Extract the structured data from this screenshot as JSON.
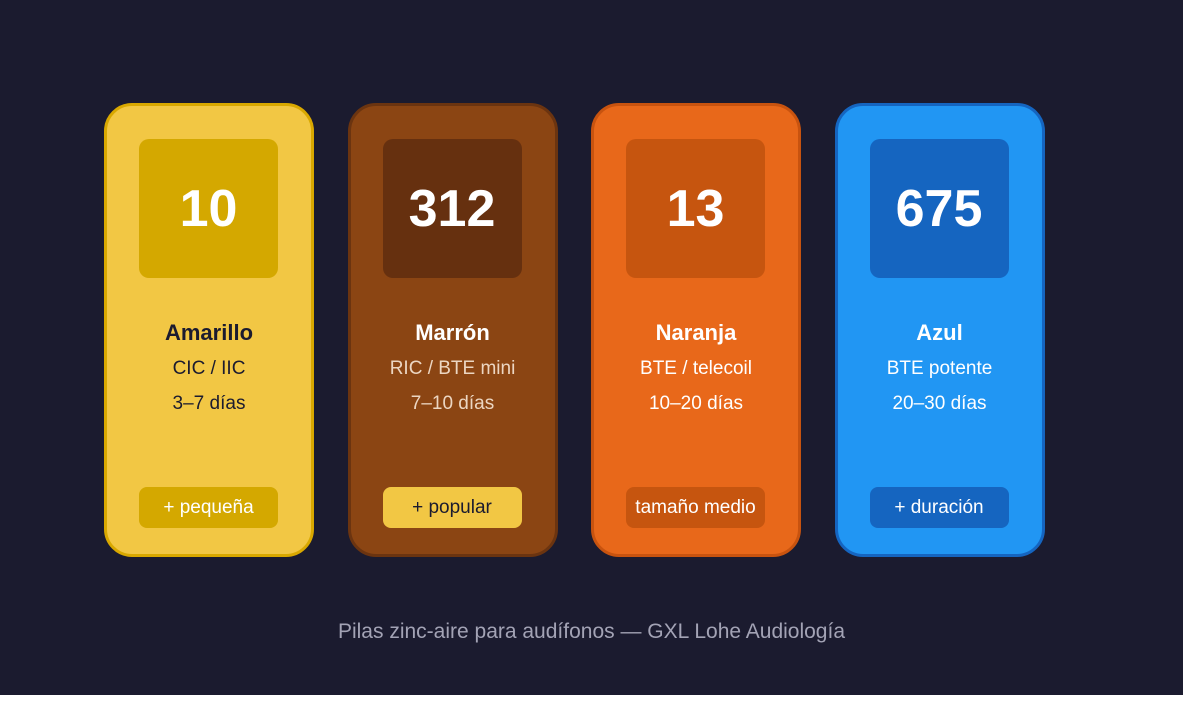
{
  "cards": [
    {
      "size": "10",
      "color": "Amarillo",
      "type": "CIC / IIC",
      "duration": "3–7 días",
      "badge": "+ pequeña"
    },
    {
      "size": "312",
      "color": "Marrón",
      "type": "RIC / BTE mini",
      "duration": "7–10 días",
      "badge": "+ popular"
    },
    {
      "size": "13",
      "color": "Naranja",
      "type": "BTE / telecoil",
      "duration": "10–20 días",
      "badge": "tamaño medio"
    },
    {
      "size": "675",
      "color": "Azul",
      "type": "BTE potente",
      "duration": "20–30 días",
      "badge": "+ duración"
    }
  ],
  "footer": "Pilas zinc-aire para audífonos — GXL Lohe Audiología"
}
